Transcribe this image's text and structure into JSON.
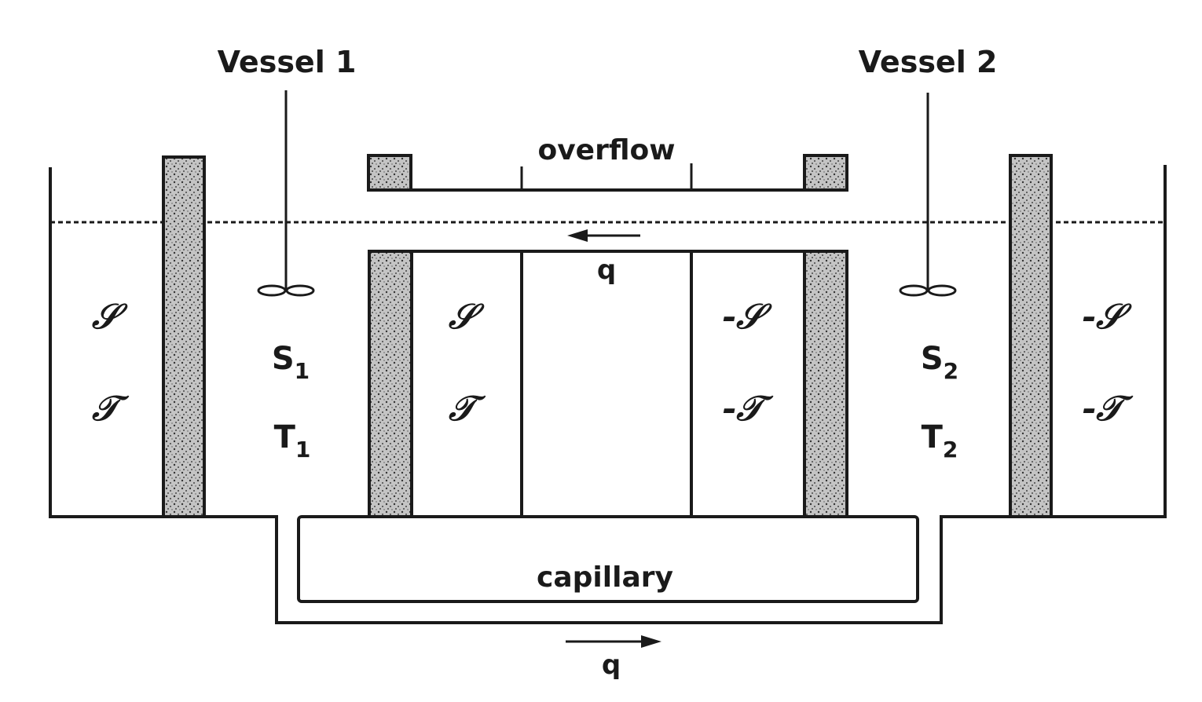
{
  "labels": {
    "vessel1": "Vessel 1",
    "vessel2": "Vessel 2",
    "overflow": "overflow",
    "capillary": "capillary",
    "flow_top": "q",
    "flow_bottom": "q"
  },
  "compartments": {
    "outer_left": {
      "entropy": "𝒮",
      "heat": "𝒯"
    },
    "vessel1": {
      "entropy": "S",
      "entropy_sub": "1",
      "temp": "T",
      "temp_sub": "1"
    },
    "inner_left": {
      "entropy": "𝒮",
      "heat": "𝒯"
    },
    "inner_right": {
      "entropy": "-𝒮",
      "heat": "-𝒯"
    },
    "vessel2": {
      "entropy": "S",
      "entropy_sub": "2",
      "temp": "T",
      "temp_sub": "2"
    },
    "outer_right": {
      "entropy": "-𝒮",
      "heat": "-𝒯"
    }
  },
  "colors": {
    "ink": "#1a1a1a",
    "background": "#ffffff",
    "wall_fill": "#bdbdbd"
  }
}
